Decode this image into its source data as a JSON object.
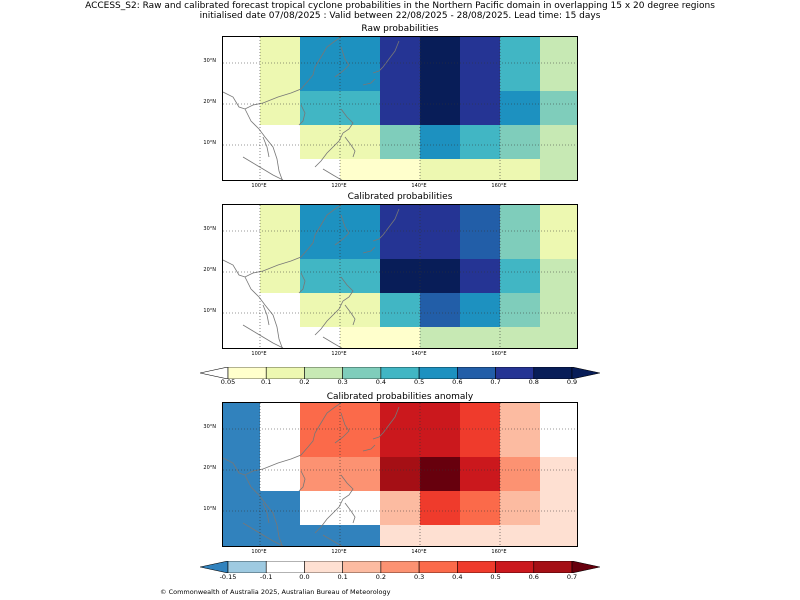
{
  "header": {
    "line1": "ACCESS_S2: Raw and calibrated forecast tropical cyclone probabilities in the Northern Pacific domain in overlapping 15 x 20 degree regions",
    "line2": "initialised date 07/08/2025 :  Valid between 22/08/2025 - 28/08/2025. Lead time: 15 days"
  },
  "axes": {
    "lat_labels": [
      "30°N",
      "20°N",
      "10°N"
    ],
    "lon_labels": [
      "100°E",
      "120°E",
      "140°E",
      "160°E"
    ]
  },
  "panels": {
    "raw": {
      "title": "Raw probabilities"
    },
    "cal": {
      "title": "Calibrated probabilities"
    },
    "anom": {
      "title": "Calibrated probabilities anomaly"
    }
  },
  "prob_colorbar": {
    "labels": [
      "0.05",
      "0.1",
      "0.2",
      "0.3",
      "0.4",
      "0.5",
      "0.6",
      "0.7",
      "0.8",
      "0.9"
    ],
    "colors": [
      "#ffffcc",
      "#edf8b1",
      "#c7e9b4",
      "#7fcdbb",
      "#41b6c4",
      "#1d91c0",
      "#225ea8",
      "#253494",
      "#081d58"
    ]
  },
  "anom_colorbar": {
    "labels": [
      "-0.15",
      "-0.1",
      "0.0",
      "0.1",
      "0.2",
      "0.3",
      "0.4",
      "0.5",
      "0.6",
      "0.7"
    ],
    "colors": [
      "#9ecae1",
      "#ffffff",
      "#fee0d2",
      "#fcbba1",
      "#fc9272",
      "#fb6a4a",
      "#ef3b2c",
      "#cb181d",
      "#a50f15"
    ],
    "under": "#3182bd",
    "over": "#67000d"
  },
  "footer": "© Commonwealth of Australia 2025, Australian Bureau of Meteorology"
}
